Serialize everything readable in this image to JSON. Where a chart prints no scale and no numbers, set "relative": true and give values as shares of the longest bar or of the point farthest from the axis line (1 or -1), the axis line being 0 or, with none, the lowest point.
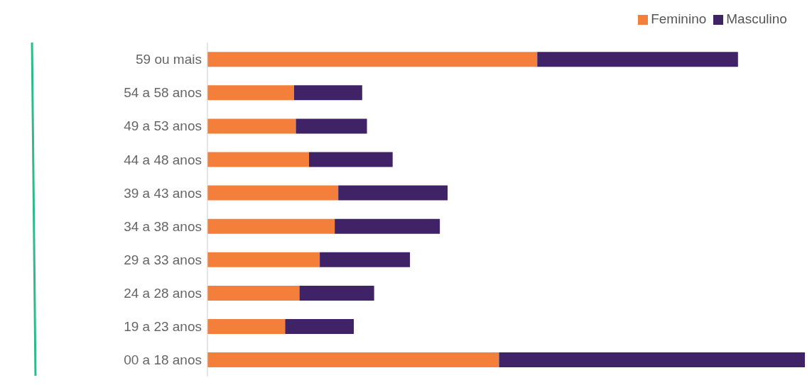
{
  "chart_data": {
    "type": "bar",
    "orientation": "horizontal",
    "stacked": true,
    "relative": true,
    "legend": "top",
    "categories": [
      "59 ou mais",
      "54 a 58 anos",
      "49 a 53 anos",
      "44 a 48 anos",
      "39 a 43 anos",
      "34 a 38 anos",
      "29 a 33 anos",
      "24 a 28 anos",
      "19 a 23 anos",
      "00 a 18 anos"
    ],
    "series": [
      {
        "name": "Feminino",
        "color": "#f47f3a",
        "values": [
          0.552,
          0.145,
          0.148,
          0.17,
          0.219,
          0.213,
          0.188,
          0.154,
          0.13,
          0.488
        ]
      },
      {
        "name": "Masculino",
        "color": "#3f2366",
        "values": [
          0.336,
          0.114,
          0.119,
          0.14,
          0.183,
          0.176,
          0.151,
          0.125,
          0.115,
          0.512
        ]
      }
    ]
  }
}
